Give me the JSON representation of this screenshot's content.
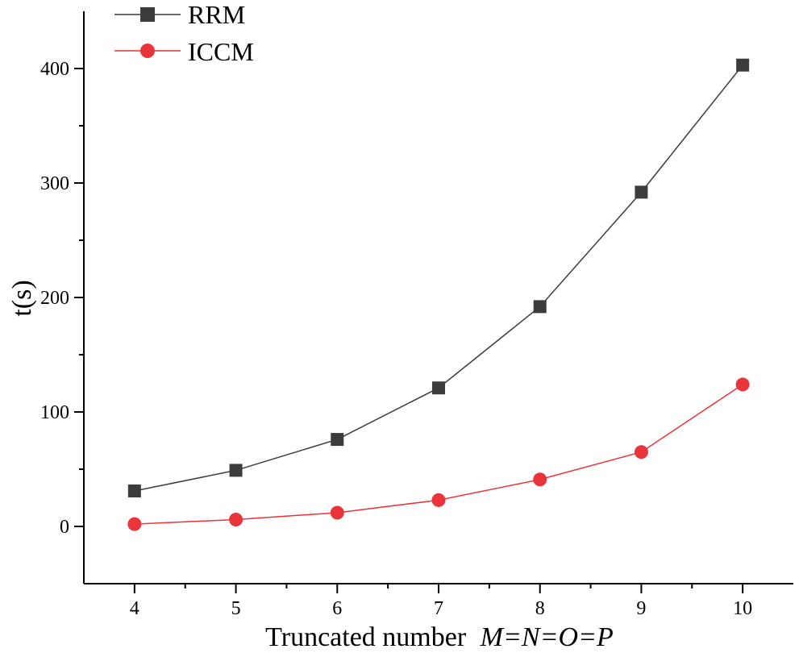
{
  "chart_data": {
    "type": "line",
    "title": "",
    "xlabel": "Truncated number",
    "xlabel_italic": "M=N=O=P",
    "ylabel": "t(s)",
    "x": [
      4,
      5,
      6,
      7,
      8,
      9,
      10
    ],
    "xlim": [
      3.5,
      10.5
    ],
    "ylim": [
      -50,
      450
    ],
    "xticks": [
      4,
      5,
      6,
      7,
      8,
      9,
      10
    ],
    "yticks": [
      0,
      100,
      200,
      300,
      400
    ],
    "grid": false,
    "legend_position": "top-left",
    "series": [
      {
        "name": "RRM",
        "marker": "square",
        "color": "#3c3c3c",
        "values": [
          31,
          49,
          76,
          121,
          192,
          292,
          403
        ]
      },
      {
        "name": "ICCM",
        "marker": "circle",
        "color": "#e8343a",
        "values": [
          2,
          6,
          12,
          23,
          41,
          65,
          124
        ]
      }
    ]
  }
}
